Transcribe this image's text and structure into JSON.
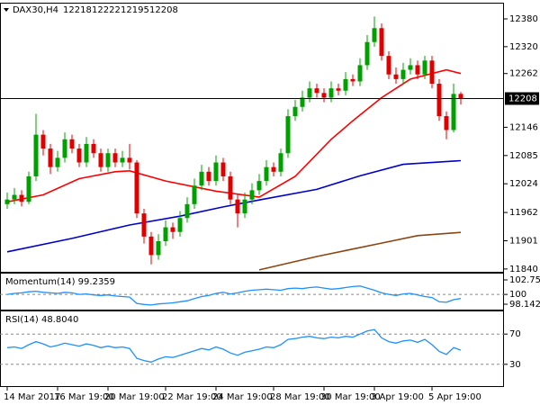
{
  "chart_data": [
    {
      "type": "candlestick",
      "title": "DAX30,H4",
      "up_color": "#00a000",
      "down_color": "#e00000",
      "open": [
        11980,
        11990,
        12000,
        11985,
        12040,
        12130,
        12100,
        12060,
        12080,
        12120,
        12100,
        12070,
        12110,
        12090,
        12060,
        12090,
        12070,
        12080,
        12070,
        11960,
        11910,
        11870,
        11900,
        11930,
        11920,
        11950,
        11980,
        12020,
        12050,
        12030,
        12070,
        12040,
        11990,
        11960,
        11990,
        12010,
        12030,
        12060,
        12050,
        12090,
        12170,
        12190,
        12210,
        12230,
        12220,
        12210,
        12230,
        12225,
        12250,
        12245,
        12280,
        12330,
        12360,
        12300,
        12260,
        12250,
        12270,
        12280,
        12260,
        12290,
        12240,
        12170,
        12140,
        12218
      ],
      "high": [
        12005,
        12015,
        12010,
        12050,
        12175,
        12140,
        12110,
        12095,
        12135,
        12130,
        12110,
        12125,
        12120,
        12100,
        12100,
        12100,
        12095,
        12110,
        12075,
        11970,
        11920,
        11915,
        11945,
        11940,
        11965,
        11995,
        12035,
        12065,
        12060,
        12085,
        12080,
        12050,
        12000,
        12005,
        12025,
        12045,
        12075,
        12070,
        12100,
        12185,
        12205,
        12225,
        12245,
        12240,
        12230,
        12245,
        12240,
        12265,
        12260,
        12295,
        12345,
        12385,
        12370,
        12310,
        12275,
        12285,
        12295,
        12290,
        12300,
        12300,
        12250,
        12180,
        12240,
        12222
      ],
      "low": [
        11970,
        11980,
        11975,
        11980,
        12030,
        12085,
        12045,
        12050,
        12070,
        12090,
        12060,
        12060,
        12080,
        12050,
        12050,
        12060,
        12060,
        12055,
        11950,
        11895,
        11850,
        11860,
        11890,
        11905,
        11910,
        11940,
        11970,
        12010,
        12020,
        12020,
        12030,
        11980,
        11930,
        11950,
        11980,
        12000,
        12020,
        12040,
        12040,
        12080,
        12160,
        12180,
        12200,
        12210,
        12200,
        12200,
        12215,
        12215,
        12235,
        12235,
        12270,
        12320,
        12290,
        12250,
        12240,
        12240,
        12260,
        12250,
        12250,
        12230,
        12160,
        12120,
        12135,
        12195
      ],
      "close": [
        11990,
        12000,
        11985,
        12040,
        12130,
        12100,
        12060,
        12080,
        12120,
        12100,
        12070,
        12110,
        12090,
        12060,
        12090,
        12070,
        12080,
        12070,
        11960,
        11910,
        11870,
        11900,
        11930,
        11920,
        11950,
        11980,
        12020,
        12050,
        12030,
        12070,
        12040,
        11990,
        11960,
        11990,
        12010,
        12030,
        12060,
        12050,
        12090,
        12170,
        12190,
        12210,
        12230,
        12220,
        12210,
        12230,
        12225,
        12250,
        12245,
        12280,
        12330,
        12360,
        12300,
        12260,
        12250,
        12270,
        12280,
        12260,
        12290,
        12240,
        12170,
        12140,
        12218,
        12208
      ],
      "overlays": [
        {
          "color": "#ff0000",
          "x": [
            0,
            5,
            10,
            15,
            17,
            22,
            29,
            35,
            40,
            45,
            48,
            52,
            56,
            61,
            63
          ],
          "values": [
            11985,
            12000,
            12035,
            12050,
            12052,
            12030,
            12008,
            11995,
            12040,
            12120,
            12160,
            12210,
            12250,
            12270,
            12262
          ]
        },
        {
          "color": "#0000cc",
          "x": [
            0,
            9,
            17,
            24,
            30,
            35,
            43,
            49,
            55,
            63
          ],
          "values": [
            11877,
            11906,
            11935,
            11954,
            11974,
            11989,
            12012,
            12041,
            12066,
            12074
          ]
        },
        {
          "color": "#8b4513",
          "x": [
            35,
            43,
            52,
            57,
            63
          ],
          "values": [
            11838,
            11867,
            11896,
            11912,
            11919
          ]
        }
      ],
      "xlim": [
        -1,
        69
      ],
      "ylim": [
        11832,
        12413
      ],
      "yticks": [
        12380,
        12320,
        12262,
        12146,
        12085,
        12024,
        11962,
        11901,
        11840
      ]
    },
    {
      "type": "line",
      "title": "Momentum(14) 99.2359",
      "color": "#1e90ff",
      "values": [
        100.0,
        100.2,
        100.3,
        100.5,
        100.6,
        100.4,
        100.3,
        100.2,
        100.4,
        100.3,
        100.0,
        100.1,
        99.9,
        99.8,
        99.9,
        99.7,
        99.6,
        99.5,
        98.3,
        98.1,
        98.0,
        98.2,
        98.3,
        98.4,
        98.6,
        98.8,
        99.2,
        99.6,
        99.8,
        100.2,
        100.4,
        100.1,
        100.3,
        100.6,
        100.8,
        100.9,
        101.0,
        100.9,
        100.8,
        101.1,
        101.2,
        101.1,
        101.3,
        101.4,
        101.2,
        101.0,
        101.1,
        101.3,
        101.5,
        101.6,
        101.2,
        100.8,
        100.3,
        100.0,
        99.8,
        100.1,
        100.2,
        99.9,
        99.6,
        99.4,
        98.6,
        98.5,
        99.0,
        99.2359
      ],
      "xlim": [
        -1,
        69
      ],
      "ylim": [
        96.95,
        103.95
      ],
      "yticks": [
        102.7526,
        100,
        98.1427
      ],
      "levels": [
        100
      ]
    },
    {
      "type": "line",
      "title": "RSI(14) 48.8040",
      "color": "#1e90ff",
      "values": [
        52,
        53,
        51,
        56,
        60,
        57,
        53,
        55,
        58,
        56,
        54,
        57,
        55,
        52,
        54,
        52,
        53,
        51,
        38,
        35,
        33,
        37,
        40,
        39,
        42,
        45,
        48,
        51,
        49,
        53,
        50,
        45,
        42,
        46,
        48,
        50,
        53,
        52,
        56,
        63,
        64,
        66,
        67,
        65,
        64,
        66,
        65,
        67,
        66,
        70,
        74,
        76,
        65,
        60,
        58,
        61,
        62,
        59,
        63,
        56,
        47,
        43,
        52,
        48.804
      ],
      "xlim": [
        -1,
        69
      ],
      "ylim": [
        0,
        100
      ],
      "yticks": [
        70,
        30
      ],
      "levels": [
        70,
        30
      ],
      "xticks": [
        {
          "value": 0,
          "label": "14 Mar 2017"
        },
        {
          "value": 7,
          "label": "16 Mar 19:00"
        },
        {
          "value": 14,
          "label": "20 Mar 19:00"
        },
        {
          "value": 22,
          "label": "22 Mar 19:00"
        },
        {
          "value": 29,
          "label": "24 Mar 19:00"
        },
        {
          "value": 37,
          "label": "28 Mar 19:00"
        },
        {
          "value": 44,
          "label": "30 Mar 19:00"
        },
        {
          "value": 51,
          "label": "3 Apr 19:00"
        },
        {
          "value": 59,
          "label": "5 Apr 19:00"
        }
      ]
    }
  ]
}
